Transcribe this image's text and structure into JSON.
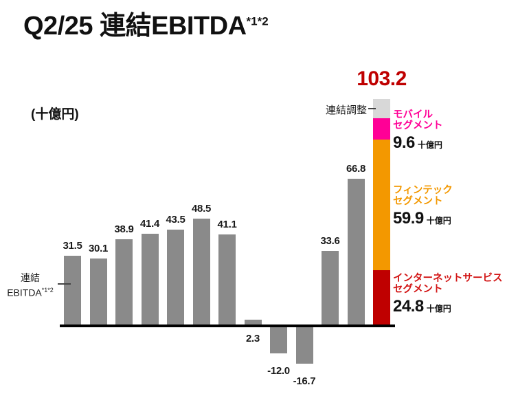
{
  "title": {
    "text": "Q2/25 連結EBITDA",
    "superscript": "*1*2"
  },
  "unit_label": "(十億円)",
  "annotations": {
    "consolidated_ebitda": {
      "line1": "連結",
      "line2": "EBITDA",
      "superscript": "*1*2"
    },
    "consolidated_adjustment": "連結調整"
  },
  "colors": {
    "background": "#ffffff",
    "title_text": "#111111",
    "bar_gray": "#8a8a8a",
    "axis_black": "#000000",
    "total_red": "#bf0000",
    "value_label_black": "#1a1a1a"
  },
  "chart_data": {
    "type": "bar",
    "title": "Q2/25 連結EBITDA *1*2",
    "ylabel": "(十億円)",
    "unit": "十億円",
    "grid": false,
    "bar_values": [
      31.5,
      30.1,
      38.9,
      41.4,
      43.5,
      48.5,
      41.1,
      2.3,
      -12.0,
      -16.7,
      33.6,
      66.8
    ],
    "bar_series_label": "連結EBITDA*1*2",
    "stacked_bar": {
      "total": 103.2,
      "total_label": "103.2",
      "total_color": "#bf0000",
      "segments_bottom_to_top": [
        {
          "id": "internet",
          "name_lines": [
            "インターネットサービス",
            "セグメント"
          ],
          "value": 24.8,
          "value_label": "24.8",
          "unit": "十億円",
          "color": "#bf0000",
          "label_color": "#d21414"
        },
        {
          "id": "fintech",
          "name_lines": [
            "フィンテック",
            "セグメント"
          ],
          "value": 59.9,
          "value_label": "59.9",
          "unit": "十億円",
          "color": "#f39800",
          "label_color": "#f39800"
        },
        {
          "id": "mobile",
          "name_lines": [
            "モバイル",
            "セグメント"
          ],
          "value": 9.6,
          "value_label": "9.6",
          "unit": "十億円",
          "color": "#ff0096",
          "label_color": "#ff0096"
        },
        {
          "id": "adjustment",
          "name": "連結調整",
          "color": "#d8d8d8"
        }
      ]
    }
  }
}
